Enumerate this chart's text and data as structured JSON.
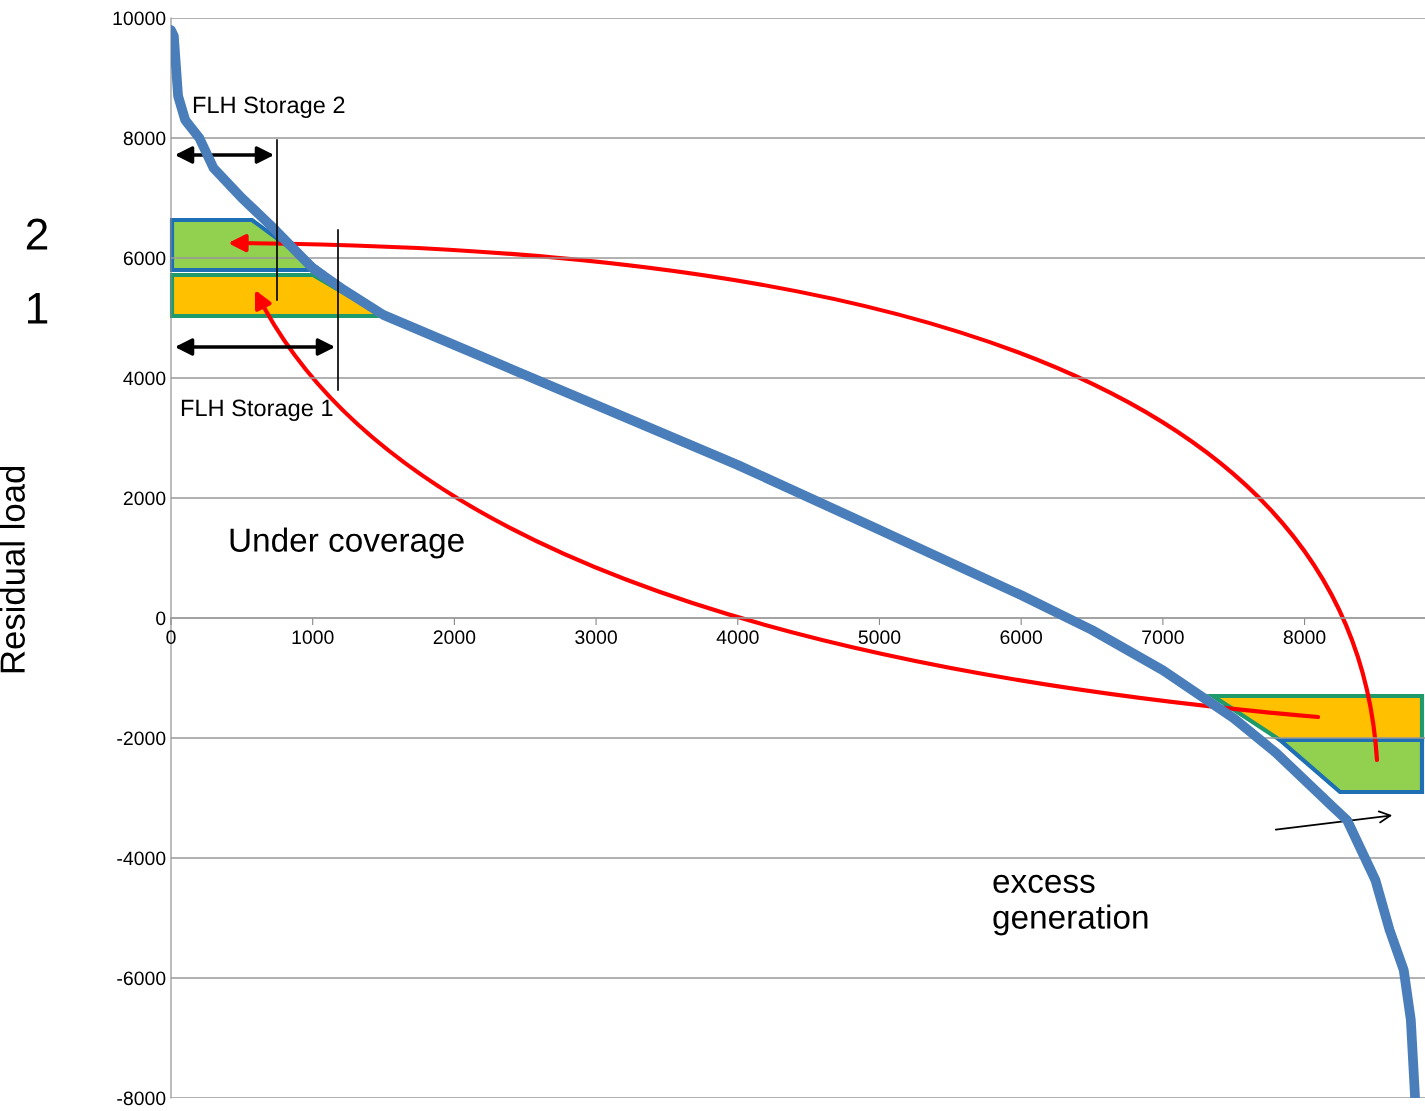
{
  "chart_data": {
    "type": "line",
    "ylabel": "Residual load",
    "x": [
      0,
      20,
      50,
      100,
      200,
      300,
      500,
      700,
      1000,
      1200,
      1500,
      2000,
      3000,
      4000,
      5000,
      6000,
      6500,
      7000,
      7500,
      7800,
      8000,
      8200,
      8300,
      8500,
      8600,
      8700,
      8750,
      8780
    ],
    "series": [
      {
        "color": "#4a7ebb",
        "values": [
          9800,
          9700,
          8700,
          8300,
          8000,
          7500,
          7000,
          6550,
          5830,
          5500,
          5050,
          4550,
          3550,
          2550,
          1470,
          380,
          -200,
          -870,
          -1670,
          -2250,
          -2700,
          -3150,
          -3370,
          -4370,
          -5200,
          -5870,
          -6700,
          -8000
        ]
      }
    ],
    "xlim": [
      0,
      8850
    ],
    "xticks": [
      0,
      1000,
      2000,
      3000,
      4000,
      5000,
      6000,
      7000,
      8000
    ],
    "ylim": [
      -8000,
      10000
    ],
    "yticks": [
      -8000,
      -6000,
      -4000,
      -2000,
      0,
      2000,
      4000,
      6000,
      8000,
      10000
    ],
    "grid": "y",
    "marker": "none",
    "line_style": "solid",
    "annotations": [
      "FLH Storage 2",
      "FLH Storage 1",
      "Under coverage",
      "excess\ngeneration",
      "2",
      "1"
    ]
  }
}
